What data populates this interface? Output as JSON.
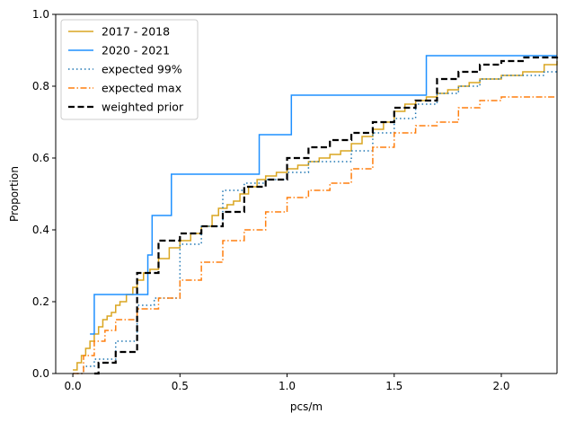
{
  "chart_data": {
    "type": "line",
    "title": "",
    "xlabel": "pcs/m",
    "ylabel": "Proportion",
    "xlim": [
      -0.08,
      2.26
    ],
    "ylim": [
      0,
      1
    ],
    "xticks": [
      0.0,
      0.5,
      1.0,
      1.5,
      2.0
    ],
    "xtick_labels": [
      "0.0",
      "0.5",
      "1.0",
      "1.5",
      "2.0"
    ],
    "yticks": [
      0.0,
      0.2,
      0.4,
      0.6,
      0.8,
      1.0
    ],
    "ytick_labels": [
      "0.0",
      "0.2",
      "0.4",
      "0.6",
      "0.8",
      "1.0"
    ],
    "grid": false,
    "legend_position": "top-left",
    "series": [
      {
        "name": "2017 - 2018",
        "color": "#DAA520",
        "style": "solid",
        "x": [
          0.0,
          0.02,
          0.04,
          0.06,
          0.08,
          0.1,
          0.12,
          0.14,
          0.16,
          0.18,
          0.2,
          0.22,
          0.25,
          0.28,
          0.3,
          0.33,
          0.36,
          0.4,
          0.45,
          0.5,
          0.55,
          0.6,
          0.65,
          0.68,
          0.72,
          0.75,
          0.78,
          0.82,
          0.86,
          0.9,
          0.95,
          1.0,
          1.05,
          1.1,
          1.15,
          1.2,
          1.25,
          1.3,
          1.35,
          1.4,
          1.45,
          1.5,
          1.55,
          1.6,
          1.65,
          1.7,
          1.75,
          1.8,
          1.85,
          1.9,
          2.0,
          2.1,
          2.2,
          2.26
        ],
        "y": [
          0.01,
          0.03,
          0.05,
          0.07,
          0.09,
          0.11,
          0.13,
          0.15,
          0.16,
          0.17,
          0.19,
          0.2,
          0.22,
          0.24,
          0.26,
          0.28,
          0.29,
          0.32,
          0.35,
          0.37,
          0.39,
          0.41,
          0.44,
          0.46,
          0.47,
          0.48,
          0.5,
          0.52,
          0.54,
          0.55,
          0.56,
          0.57,
          0.58,
          0.59,
          0.6,
          0.61,
          0.62,
          0.64,
          0.66,
          0.68,
          0.7,
          0.73,
          0.75,
          0.76,
          0.77,
          0.78,
          0.79,
          0.8,
          0.81,
          0.82,
          0.83,
          0.84,
          0.86,
          0.87
        ]
      },
      {
        "name": "2020 - 2021",
        "color": "#1E90FF",
        "style": "solid",
        "x": [
          0.08,
          0.1,
          0.35,
          0.37,
          0.46,
          0.87,
          1.02,
          1.65,
          2.26
        ],
        "y": [
          0.11,
          0.22,
          0.33,
          0.44,
          0.555,
          0.665,
          0.775,
          0.885,
          0.885
        ]
      },
      {
        "name": "expected 99%",
        "color": "#1F77B4",
        "style": "dotted",
        "x": [
          0.0,
          0.05,
          0.1,
          0.2,
          0.3,
          0.38,
          0.5,
          0.6,
          0.7,
          0.8,
          0.9,
          1.0,
          1.1,
          1.2,
          1.3,
          1.4,
          1.5,
          1.6,
          1.7,
          1.8,
          1.9,
          2.0,
          2.1,
          2.2,
          2.26
        ],
        "y": [
          0.0,
          0.02,
          0.04,
          0.09,
          0.19,
          0.21,
          0.36,
          0.41,
          0.51,
          0.53,
          0.54,
          0.56,
          0.59,
          0.59,
          0.62,
          0.67,
          0.71,
          0.75,
          0.78,
          0.8,
          0.82,
          0.83,
          0.83,
          0.84,
          0.84
        ]
      },
      {
        "name": "expected max",
        "color": "#FF7F0E",
        "style": "dashdot",
        "x": [
          0.0,
          0.05,
          0.1,
          0.15,
          0.2,
          0.3,
          0.4,
          0.5,
          0.6,
          0.7,
          0.8,
          0.9,
          1.0,
          1.1,
          1.2,
          1.3,
          1.4,
          1.5,
          1.6,
          1.7,
          1.8,
          1.9,
          2.0,
          2.1,
          2.2,
          2.26
        ],
        "y": [
          0.0,
          0.05,
          0.09,
          0.12,
          0.15,
          0.18,
          0.21,
          0.26,
          0.31,
          0.37,
          0.4,
          0.45,
          0.49,
          0.51,
          0.53,
          0.57,
          0.63,
          0.67,
          0.69,
          0.7,
          0.74,
          0.76,
          0.77,
          0.77,
          0.77,
          0.77
        ]
      },
      {
        "name": "weighted prior",
        "color": "#000000",
        "style": "dashed",
        "x": [
          0.1,
          0.12,
          0.2,
          0.3,
          0.4,
          0.5,
          0.6,
          0.7,
          0.8,
          0.9,
          1.0,
          1.1,
          1.2,
          1.3,
          1.4,
          1.5,
          1.6,
          1.7,
          1.8,
          1.9,
          2.0,
          2.1,
          2.2,
          2.26
        ],
        "y": [
          0.0,
          0.03,
          0.06,
          0.28,
          0.37,
          0.39,
          0.41,
          0.45,
          0.52,
          0.54,
          0.6,
          0.63,
          0.65,
          0.67,
          0.7,
          0.74,
          0.76,
          0.82,
          0.84,
          0.86,
          0.87,
          0.88,
          0.88,
          0.89
        ]
      }
    ]
  }
}
